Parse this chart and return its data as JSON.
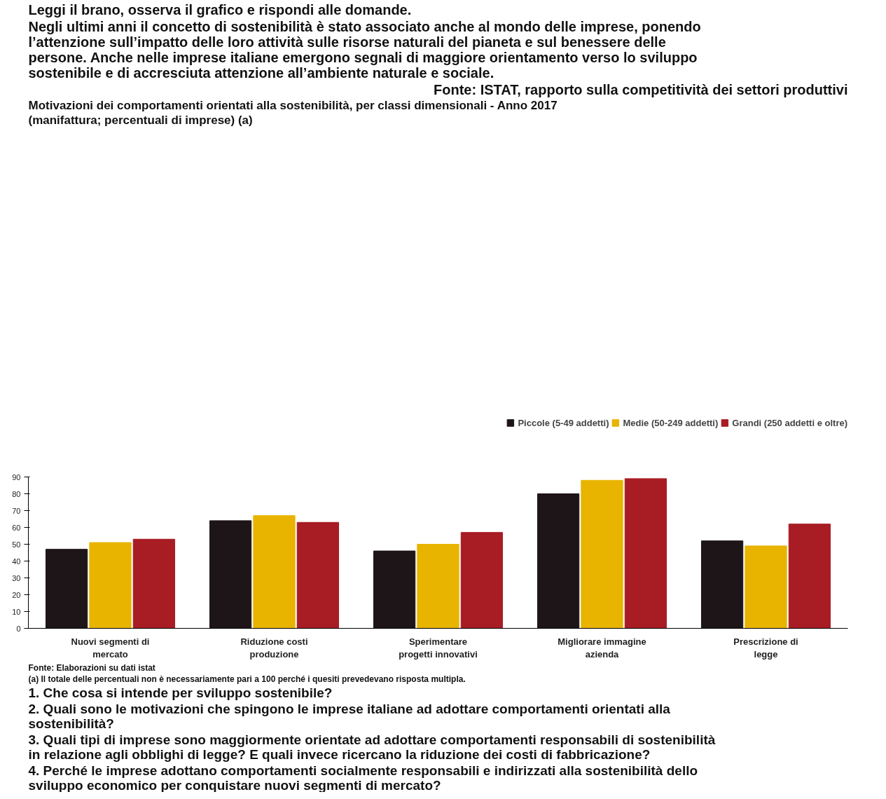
{
  "chart_data": {
    "type": "bar",
    "title": "Motivazioni dei comportamenti orientati alla sostenibilità, per classi dimensionali - Anno 2017",
    "subtitle": "(manifattura; percentuali di imprese) (a)",
    "categories": [
      "Nuovi segmenti di mercato",
      "Riduzione costi produzione",
      "Sperimentare progetti innovativi",
      "Migliorare immagine azienda",
      "Prescrizione di legge"
    ],
    "series": [
      {
        "name": "Piccole (5-49 addetti)",
        "color": "#1e1519",
        "values": [
          47,
          64,
          46,
          80,
          52
        ]
      },
      {
        "name": "Medie (50-249 addetti)",
        "color": "#e8b400",
        "values": [
          51,
          67,
          50,
          88,
          49
        ]
      },
      {
        "name": "Grandi (250 addetti e oltre)",
        "color": "#a81c24",
        "values": [
          53,
          63,
          57,
          89,
          62
        ]
      }
    ],
    "ylim": [
      0,
      90
    ],
    "yticks": [
      0,
      10,
      20,
      30,
      40,
      50,
      60,
      70,
      80,
      90
    ],
    "grid": false,
    "legend": "top",
    "annotations": [
      "Leggi il brano, osserva il grafico e rispondi alle domande.",
      "Negli ultimi anni il concetto di sostenibilità è stato associato anche al mondo delle imprese, ponendo l’attenzione sull’impatto delle loro attività sulle risorse naturali del pianeta e sul benessere delle persone. Anche nelle imprese italiane emergono segnali di maggiore orientamento verso lo sviluppo sostenibile e di accresciuta attenzione all’ambiente naturale e sociale.",
      "Fonte: ISTAT, rapporto sulla competitività dei settori produttivi",
      "Fonte: Elaborazioni su dati istat",
      "(a) Il totale delle percentuali non è necessariamente pari a 100 perché i quesiti prevedevano risposta multipla.",
      "1. Che cosa si intende per sviluppo sostenibile?",
      "2. Quali sono le motivazioni che spingono le imprese italiane ad adottare comportamenti orientati alla sostenibilità?",
      "3. Quali tipi di imprese sono maggiormente orientate ad adottare comportamenti responsabili di sostenibilità in relazione agli obblighi di legge? E quali invece ricercano la riduzione dei costi di fabbricazione?",
      "4. Perché le imprese adottano comportamenti socialmente responsabili e indirizzati alla sostenibilità dello sviluppo economico per conquistare nuovi segmenti di mercato?"
    ]
  }
}
